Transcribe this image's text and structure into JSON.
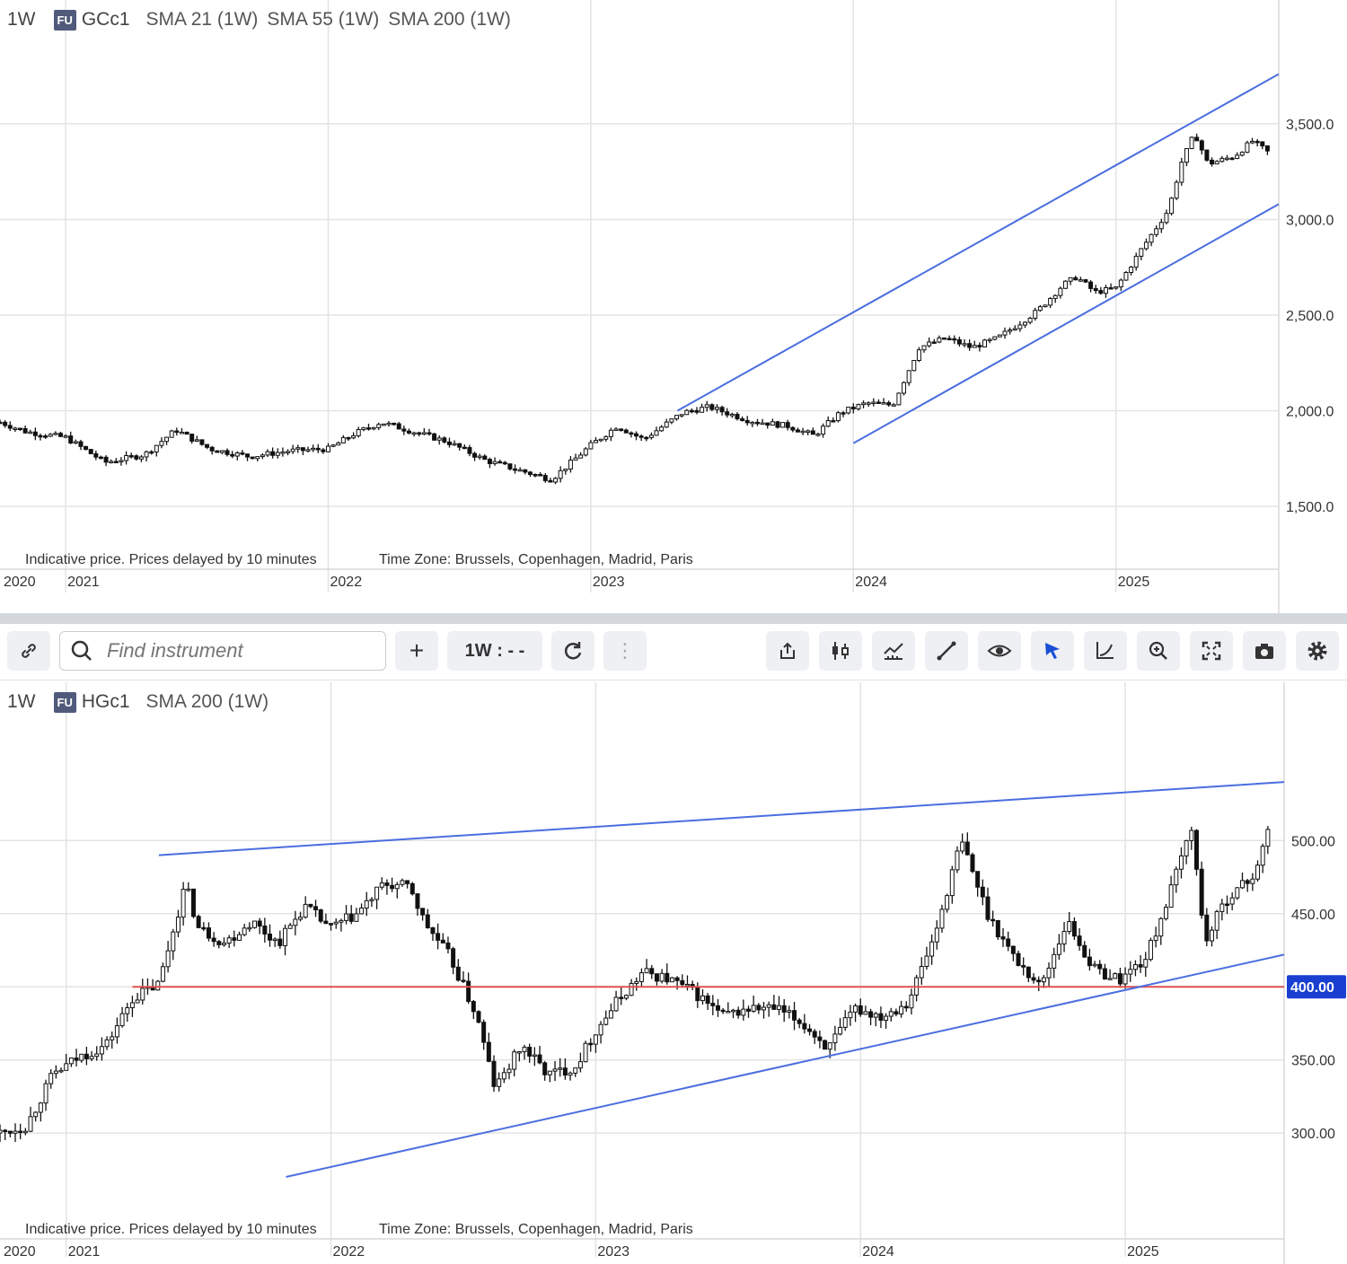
{
  "top_panel": {
    "timeframe": "1W",
    "badge": "FU",
    "symbol": "GCc1",
    "indicators": [
      "SMA 21 (1W)",
      "SMA 55 (1W)",
      "SMA 200 (1W)"
    ],
    "note_left": "Indicative price. Prices delayed by 10 minutes",
    "note_right": "Time Zone: Brussels, Copenhagen, Madrid, Paris"
  },
  "bottom_panel": {
    "timeframe": "1W",
    "badge": "FU",
    "symbol": "HGc1",
    "indicators": [
      "SMA 200 (1W)"
    ],
    "note_left": "Indicative price. Prices delayed by 10 minutes",
    "note_right": "Time Zone: Brussels, Copenhagen, Madrid, Paris",
    "price_marker": "400.00"
  },
  "toolbar": {
    "search_placeholder": "Find instrument",
    "timeframe_label": "1W : - -",
    "buttons": [
      "link-icon",
      "search-icon",
      "plus-icon",
      "refresh-icon",
      "more-icon",
      "share-icon",
      "candles-icon",
      "indicators-icon",
      "draw-line-icon",
      "eye-icon",
      "cursor-icon",
      "curve-icon",
      "zoom-icon",
      "fullscreen-icon",
      "camera-icon",
      "gear-icon"
    ]
  },
  "colors": {
    "trendline": "#4a6ee0",
    "support_line": "#e05050",
    "price_marker_bg": "#1a3fd0",
    "candle": "#111111",
    "grid": "#e3e3e3"
  },
  "chart_data": [
    {
      "type": "candlestick",
      "symbol": "GCc1",
      "interval": "1W",
      "x_ticks": [
        "2020",
        "2021",
        "2022",
        "2023",
        "2024",
        "2025"
      ],
      "y_ticks": [
        "1,500.0",
        "2,000.0",
        "2,500.0",
        "3,000.0",
        "3,500.0"
      ],
      "ylim": [
        1350,
        3800
      ],
      "xlim": [
        2020.75,
        2025.62
      ],
      "grid": true,
      "close_path": [
        [
          2020.75,
          1940
        ],
        [
          2020.85,
          1890
        ],
        [
          2021.0,
          1860
        ],
        [
          2021.15,
          1730
        ],
        [
          2021.3,
          1770
        ],
        [
          2021.42,
          1900
        ],
        [
          2021.55,
          1800
        ],
        [
          2021.7,
          1760
        ],
        [
          2021.85,
          1790
        ],
        [
          2022.0,
          1800
        ],
        [
          2022.1,
          1880
        ],
        [
          2022.2,
          1940
        ],
        [
          2022.3,
          1900
        ],
        [
          2022.45,
          1840
        ],
        [
          2022.6,
          1740
        ],
        [
          2022.75,
          1680
        ],
        [
          2022.85,
          1640
        ],
        [
          2023.0,
          1820
        ],
        [
          2023.1,
          1920
        ],
        [
          2023.2,
          1850
        ],
        [
          2023.35,
          1990
        ],
        [
          2023.45,
          2020
        ],
        [
          2023.6,
          1950
        ],
        [
          2023.75,
          1920
        ],
        [
          2023.85,
          1870
        ],
        [
          2023.95,
          1990
        ],
        [
          2024.05,
          2040
        ],
        [
          2024.15,
          2030
        ],
        [
          2024.25,
          2330
        ],
        [
          2024.35,
          2380
        ],
        [
          2024.45,
          2330
        ],
        [
          2024.55,
          2380
        ],
        [
          2024.7,
          2520
        ],
        [
          2024.8,
          2660
        ],
        [
          2024.85,
          2700
        ],
        [
          2024.92,
          2620
        ],
        [
          2025.0,
          2640
        ],
        [
          2025.1,
          2850
        ],
        [
          2025.2,
          3050
        ],
        [
          2025.25,
          3300
        ],
        [
          2025.3,
          3450
        ],
        [
          2025.35,
          3290
        ],
        [
          2025.45,
          3330
        ],
        [
          2025.52,
          3410
        ],
        [
          2025.58,
          3350
        ]
      ],
      "trendlines": [
        {
          "from": [
            2023.33,
            2000
          ],
          "to": [
            2025.62,
            3760
          ]
        },
        {
          "from": [
            2024.0,
            1830
          ],
          "to": [
            2025.62,
            3080
          ]
        }
      ]
    },
    {
      "type": "candlestick",
      "symbol": "HGc1",
      "interval": "1W",
      "x_ticks": [
        "2020",
        "2021",
        "2022",
        "2023",
        "2024",
        "2025"
      ],
      "y_ticks": [
        "300.00",
        "350.00",
        "400.00",
        "450.00",
        "500.00"
      ],
      "ylim": [
        270,
        545
      ],
      "xlim": [
        2020.75,
        2025.6
      ],
      "grid": true,
      "close_path": [
        [
          2020.75,
          300
        ],
        [
          2020.85,
          305
        ],
        [
          2020.95,
          340
        ],
        [
          2021.05,
          352
        ],
        [
          2021.15,
          360
        ],
        [
          2021.25,
          392
        ],
        [
          2021.35,
          402
        ],
        [
          2021.45,
          470
        ],
        [
          2021.5,
          440
        ],
        [
          2021.6,
          430
        ],
        [
          2021.7,
          445
        ],
        [
          2021.8,
          430
        ],
        [
          2021.9,
          455
        ],
        [
          2022.0,
          440
        ],
        [
          2022.1,
          450
        ],
        [
          2022.2,
          470
        ],
        [
          2022.3,
          468
        ],
        [
          2022.35,
          445
        ],
        [
          2022.45,
          420
        ],
        [
          2022.55,
          380
        ],
        [
          2022.62,
          330
        ],
        [
          2022.72,
          360
        ],
        [
          2022.82,
          340
        ],
        [
          2022.92,
          345
        ],
        [
          2023.0,
          370
        ],
        [
          2023.08,
          390
        ],
        [
          2023.18,
          410
        ],
        [
          2023.28,
          405
        ],
        [
          2023.38,
          395
        ],
        [
          2023.48,
          380
        ],
        [
          2023.58,
          385
        ],
        [
          2023.68,
          385
        ],
        [
          2023.78,
          375
        ],
        [
          2023.88,
          358
        ],
        [
          2023.98,
          385
        ],
        [
          2024.08,
          380
        ],
        [
          2024.18,
          390
        ],
        [
          2024.28,
          435
        ],
        [
          2024.38,
          500
        ],
        [
          2024.48,
          450
        ],
        [
          2024.58,
          420
        ],
        [
          2024.68,
          400
        ],
        [
          2024.78,
          445
        ],
        [
          2024.88,
          412
        ],
        [
          2024.98,
          405
        ],
        [
          2025.08,
          420
        ],
        [
          2025.18,
          470
        ],
        [
          2025.25,
          510
        ],
        [
          2025.3,
          430
        ],
        [
          2025.38,
          460
        ],
        [
          2025.48,
          475
        ],
        [
          2025.55,
          510
        ]
      ],
      "trendlines": [
        {
          "from": [
            2021.35,
            490
          ],
          "to": [
            2025.6,
            540
          ]
        },
        {
          "from": [
            2021.83,
            270
          ],
          "to": [
            2025.6,
            422
          ]
        }
      ],
      "support_level": 400
    }
  ]
}
